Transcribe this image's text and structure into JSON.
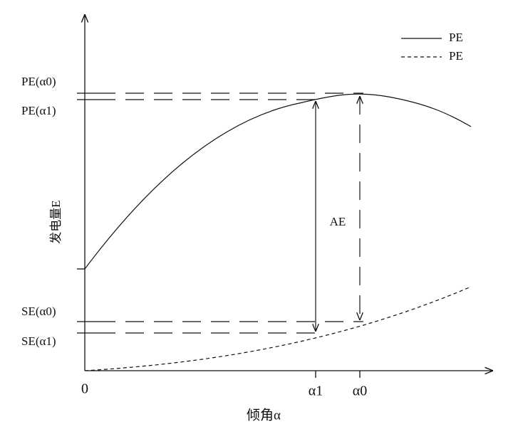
{
  "legend": {
    "items": [
      {
        "label": "PE",
        "style": "solid"
      },
      {
        "label": "PE",
        "style": "dashed"
      }
    ]
  },
  "y_axis": {
    "title": "发电量E",
    "labels": [
      "PE(α0)",
      "PE(α1)",
      "SE(α0)",
      "SE(α1)"
    ]
  },
  "x_axis": {
    "title": "倾角α",
    "labels": [
      "0",
      "α1",
      "α0"
    ]
  },
  "annotations": {
    "gap": "AE"
  }
}
